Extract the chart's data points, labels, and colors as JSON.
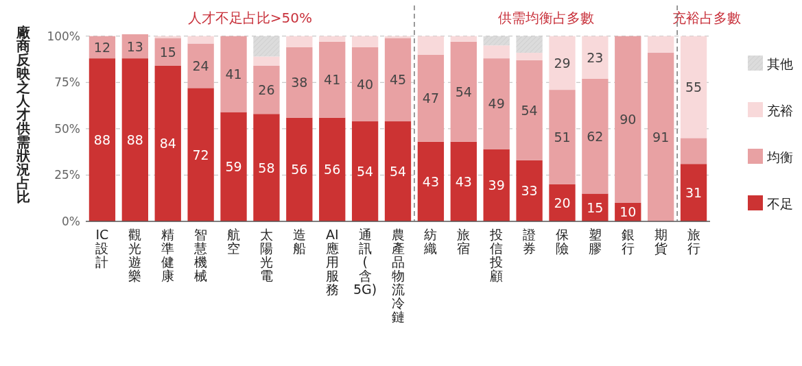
{
  "chart_data": {
    "type": "bar",
    "stacked": true,
    "ylabel": "廠商反映之人才供需狀況占比",
    "categories": [
      "IC設計",
      "觀光遊樂",
      "精準健康",
      "智慧機械",
      "航空",
      "太陽光電",
      "造船",
      "AI應用服務",
      "通訊(含5G)",
      "農產品物流冷鏈",
      "紡織",
      "旅宿",
      "投信投顧",
      "證券",
      "保險",
      "塑膠",
      "銀行",
      "期貨",
      "旅行"
    ],
    "series": [
      {
        "name": "不足",
        "color": "#cc3333",
        "values": [
          88,
          88,
          84,
          72,
          59,
          58,
          56,
          56,
          54,
          54,
          43,
          43,
          39,
          33,
          20,
          15,
          10,
          0,
          31
        ],
        "value_labels": [
          "88",
          "88",
          "84",
          "72",
          "59",
          "58",
          "56",
          "56",
          "54",
          "54",
          "43",
          "43",
          "39",
          "33",
          "20",
          "15",
          "10",
          null,
          "31"
        ]
      },
      {
        "name": "均衡",
        "color": "#e8a1a3",
        "values": [
          12,
          13,
          15,
          24,
          41,
          26,
          38,
          41,
          40,
          45,
          47,
          54,
          49,
          54,
          51,
          62,
          90,
          91,
          14
        ],
        "value_labels": [
          "12",
          "13",
          "15",
          "24",
          "41",
          "26",
          "38",
          "41",
          "40",
          "45",
          "47",
          "54",
          "49",
          "54",
          "51",
          "62",
          "90",
          "91",
          null
        ]
      },
      {
        "name": "充裕",
        "color": "#f8d9da",
        "values": [
          0,
          0,
          1,
          4,
          0,
          5,
          6,
          3,
          6,
          1,
          10,
          3,
          7,
          4,
          29,
          23,
          0,
          9,
          55
        ],
        "value_labels": [
          null,
          null,
          null,
          null,
          null,
          null,
          null,
          null,
          null,
          null,
          null,
          null,
          null,
          null,
          "29",
          "23",
          null,
          null,
          "55"
        ]
      },
      {
        "name": "其他",
        "color": "#dcdcdc",
        "values": [
          0,
          0,
          0,
          0,
          0,
          11,
          0,
          0,
          0,
          0,
          0,
          0,
          5,
          9,
          0,
          0,
          0,
          0,
          0
        ]
      }
    ],
    "ylim": [
      0,
      101
    ],
    "yticks": [
      {
        "value": 0,
        "label": "0%"
      },
      {
        "value": 25,
        "label": "25%"
      },
      {
        "value": 50,
        "label": "50%"
      },
      {
        "value": 75,
        "label": "75%"
      },
      {
        "value": 100,
        "label": "100%"
      }
    ],
    "grid": "y",
    "legend": "right",
    "annotations": [
      "人才不足占比>50%",
      "供需均衡占多數",
      "充裕占多數"
    ]
  }
}
